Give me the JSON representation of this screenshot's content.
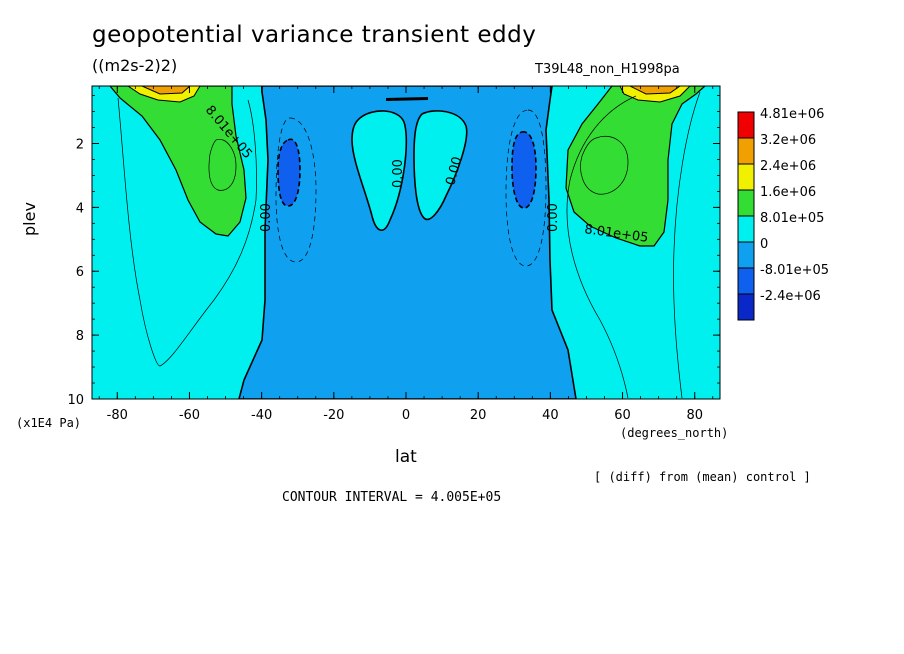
{
  "title": "geopotential variance transient eddy",
  "units": "((m2s-2)2)",
  "run_id": "T39L48_non_H1998pa",
  "y_label": "plev",
  "y_unit": "(x1E4 Pa)",
  "x_label": "lat",
  "x_unit": "(degrees_north)",
  "note": "[ (diff) from (mean) control ]",
  "contour_interval": "CONTOUR INTERVAL = 4.005E+05",
  "colors": {
    "red": "#f00000",
    "orange": "#f0a000",
    "yellow": "#f0f000",
    "green": "#33dd33",
    "cyan": "#00f0f0",
    "light_blue": "#0fa0f0",
    "blue": "#1060f0",
    "dark_blue": "#0a28c8"
  },
  "chart_data": {
    "type": "contour",
    "xlim": [
      -87,
      87
    ],
    "ylim": [
      10,
      0.2
    ],
    "x_ticks": [
      -80,
      -60,
      -40,
      -20,
      0,
      20,
      40,
      60,
      80
    ],
    "x_tick_labels": [
      "-80",
      "-60",
      "-40",
      "-20",
      "0",
      "20",
      "40",
      "60",
      "80"
    ],
    "y_ticks": [
      2,
      4,
      6,
      8,
      10
    ],
    "y_tick_labels": [
      "2",
      "4",
      "6",
      "8",
      "10"
    ],
    "legend": {
      "labels": [
        "4.81e+06",
        "3.2e+06",
        "2.4e+06",
        "1.6e+06",
        "8.01e+05",
        "0",
        "-8.01e+05",
        "-2.4e+06"
      ],
      "colors": [
        "#f00000",
        "#f0a000",
        "#f0f000",
        "#33dd33",
        "#00f0f0",
        "#0fa0f0",
        "#1060f0",
        "#0a28c8"
      ]
    },
    "contour_labels": [
      "8.01e+05",
      "0.00",
      "0.00",
      "0.00",
      "0.00",
      "8.01e+05"
    ]
  }
}
